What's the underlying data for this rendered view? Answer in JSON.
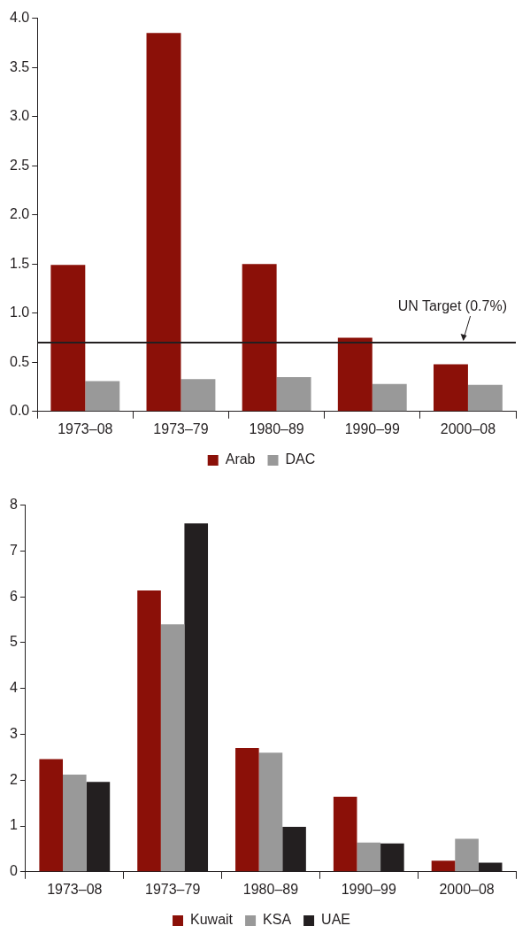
{
  "chart_data": [
    {
      "type": "bar",
      "categories": [
        "1973–08",
        "1973–79",
        "1980–89",
        "1990–99",
        "2000–08"
      ],
      "series": [
        {
          "name": "Arab",
          "color": "#8b1008",
          "values": [
            1.49,
            3.85,
            1.5,
            0.75,
            0.48
          ]
        },
        {
          "name": "DAC",
          "color": "#999999",
          "values": [
            0.31,
            0.33,
            0.35,
            0.28,
            0.27
          ]
        }
      ],
      "ylim": [
        0,
        4
      ],
      "yticks": [
        {
          "value": 0,
          "label": "0.0"
        },
        {
          "value": 0.5,
          "label": "0.5"
        },
        {
          "value": 1,
          "label": "1.0"
        },
        {
          "value": 1.5,
          "label": "1.5"
        },
        {
          "value": 2,
          "label": "2.0"
        },
        {
          "value": 2.5,
          "label": "2.5"
        },
        {
          "value": 3,
          "label": "3.0"
        },
        {
          "value": 3.5,
          "label": "3.5"
        },
        {
          "value": 4,
          "label": "4.0"
        }
      ],
      "ref_lines": [
        {
          "axis": "y",
          "value": 0.7,
          "label": "UN Target (0.7%)",
          "color": "#231f20"
        }
      ],
      "grid": false,
      "legend": "bottom"
    },
    {
      "type": "bar",
      "categories": [
        "1973–08",
        "1973–79",
        "1980–89",
        "1990–99",
        "2000–08"
      ],
      "series": [
        {
          "name": "Kuwait",
          "color": "#8b1008",
          "values": [
            2.46,
            6.14,
            2.7,
            1.64,
            0.24
          ]
        },
        {
          "name": "KSA",
          "color": "#999999",
          "values": [
            2.12,
            5.4,
            2.6,
            0.64,
            0.72
          ]
        },
        {
          "name": "UAE",
          "color": "#231f20",
          "values": [
            1.96,
            7.6,
            0.98,
            0.62,
            0.2
          ]
        }
      ],
      "ylim": [
        0,
        8
      ],
      "yticks": [
        0,
        1,
        2,
        3,
        4,
        5,
        6,
        7,
        8
      ],
      "grid": false,
      "legend": "bottom"
    }
  ]
}
